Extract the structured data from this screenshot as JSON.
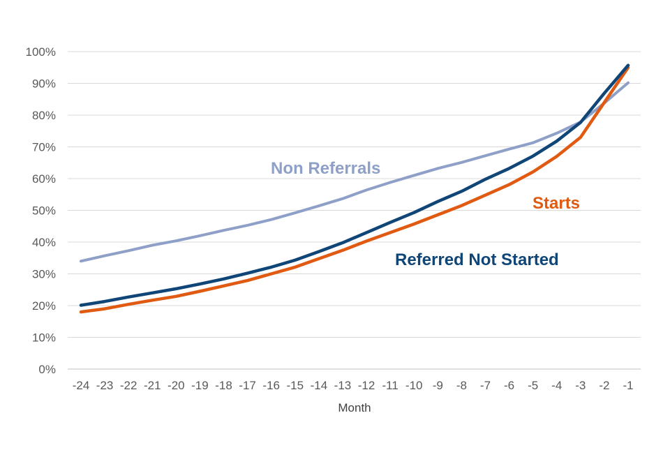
{
  "chart_data": {
    "type": "line",
    "title": "",
    "xlabel": "Month",
    "ylabel": "",
    "x": [
      -24,
      -23,
      -22,
      -21,
      -20,
      -19,
      -18,
      -17,
      -16,
      -15,
      -14,
      -13,
      -12,
      -11,
      -10,
      -9,
      -8,
      -7,
      -6,
      -5,
      -4,
      -3,
      -2,
      -1
    ],
    "x_tick_labels": [
      "-24",
      "-23",
      "-22",
      "-21",
      "-20",
      "-19",
      "-18",
      "-17",
      "-16",
      "-15",
      "-14",
      "-13",
      "-12",
      "-11",
      "-10",
      "-9",
      "-8",
      "-7",
      "-6",
      "-5",
      "-4",
      "-3",
      "-2",
      "-1"
    ],
    "ylim": [
      0,
      100
    ],
    "y_ticks": [
      0,
      10,
      20,
      30,
      40,
      50,
      60,
      70,
      80,
      90,
      100
    ],
    "y_tick_labels": [
      "0%",
      "10%",
      "20%",
      "30%",
      "40%",
      "50%",
      "60%",
      "70%",
      "80%",
      "90%",
      "100%"
    ],
    "grid": true,
    "legend": "inline labels",
    "series": [
      {
        "name": "Non Referrals",
        "color": "#8EA0C7",
        "values": [
          34,
          35.7,
          37.3,
          39,
          40.4,
          42,
          43.7,
          45.3,
          47.1,
          49.2,
          51.4,
          53.7,
          56.4,
          58.8,
          61,
          63.2,
          65.1,
          67.2,
          69.3,
          71.3,
          74.3,
          77.8,
          83.8,
          90.2
        ]
      },
      {
        "name": "Starts",
        "color": "#E05A12",
        "values": [
          18,
          19,
          20.4,
          21.7,
          22.9,
          24.5,
          26.2,
          27.9,
          30,
          32.1,
          34.8,
          37.4,
          40.3,
          43,
          45.7,
          48.6,
          51.5,
          54.8,
          58.1,
          62.1,
          67,
          73,
          84,
          95
        ]
      },
      {
        "name": "Referred Not Started",
        "color": "#0F4677",
        "values": [
          20.1,
          21.3,
          22.7,
          24,
          25.3,
          26.8,
          28.4,
          30.2,
          32.1,
          34.3,
          37,
          39.8,
          43,
          46.2,
          49.3,
          52.8,
          56,
          59.8,
          63.2,
          67.1,
          71.8,
          77.7,
          86.9,
          95.7
        ]
      }
    ]
  }
}
